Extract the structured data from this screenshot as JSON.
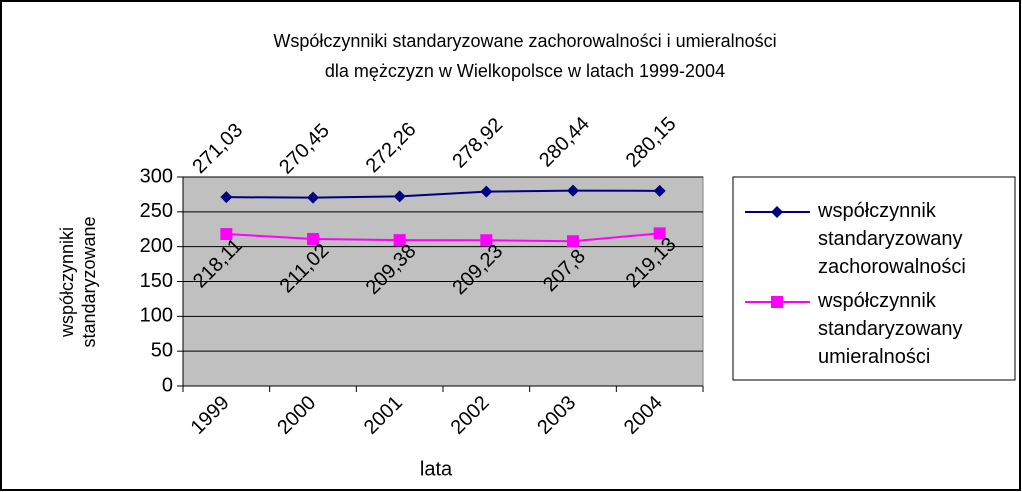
{
  "chart_data": {
    "type": "line",
    "title": [
      "Współczynniki standaryzowane zachorowalności i umieralności",
      "dla mężczyzn w Wielkopolsce w latach 1999-2004"
    ],
    "y_label": "współczynniki standaryzowane",
    "x_label": "lata",
    "categories": [
      "1999",
      "2000",
      "2001",
      "2002",
      "2003",
      "2004"
    ],
    "series": [
      {
        "name": "współczynnik standaryzowany zachorowalności",
        "color": "#000080",
        "marker": "diamond",
        "values": [
          271.03,
          270.45,
          272.26,
          278.92,
          280.44,
          280.15
        ],
        "value_labels": [
          "271,03",
          "270,45",
          "272,26",
          "278,92",
          "280,44",
          "280,15"
        ]
      },
      {
        "name": "współczynnik standaryzowany umieralności",
        "color": "#ff00ff",
        "marker": "square",
        "values": [
          218.11,
          211.02,
          209.38,
          209.23,
          207.8,
          219.13
        ],
        "value_labels": [
          "218,11",
          "211,02",
          "209,38",
          "209,23",
          "207,8",
          "219,13"
        ]
      }
    ],
    "ylim": [
      0,
      300
    ],
    "yticks": [
      0,
      50,
      100,
      150,
      200,
      250,
      300
    ],
    "grid": true,
    "legend": "right"
  }
}
